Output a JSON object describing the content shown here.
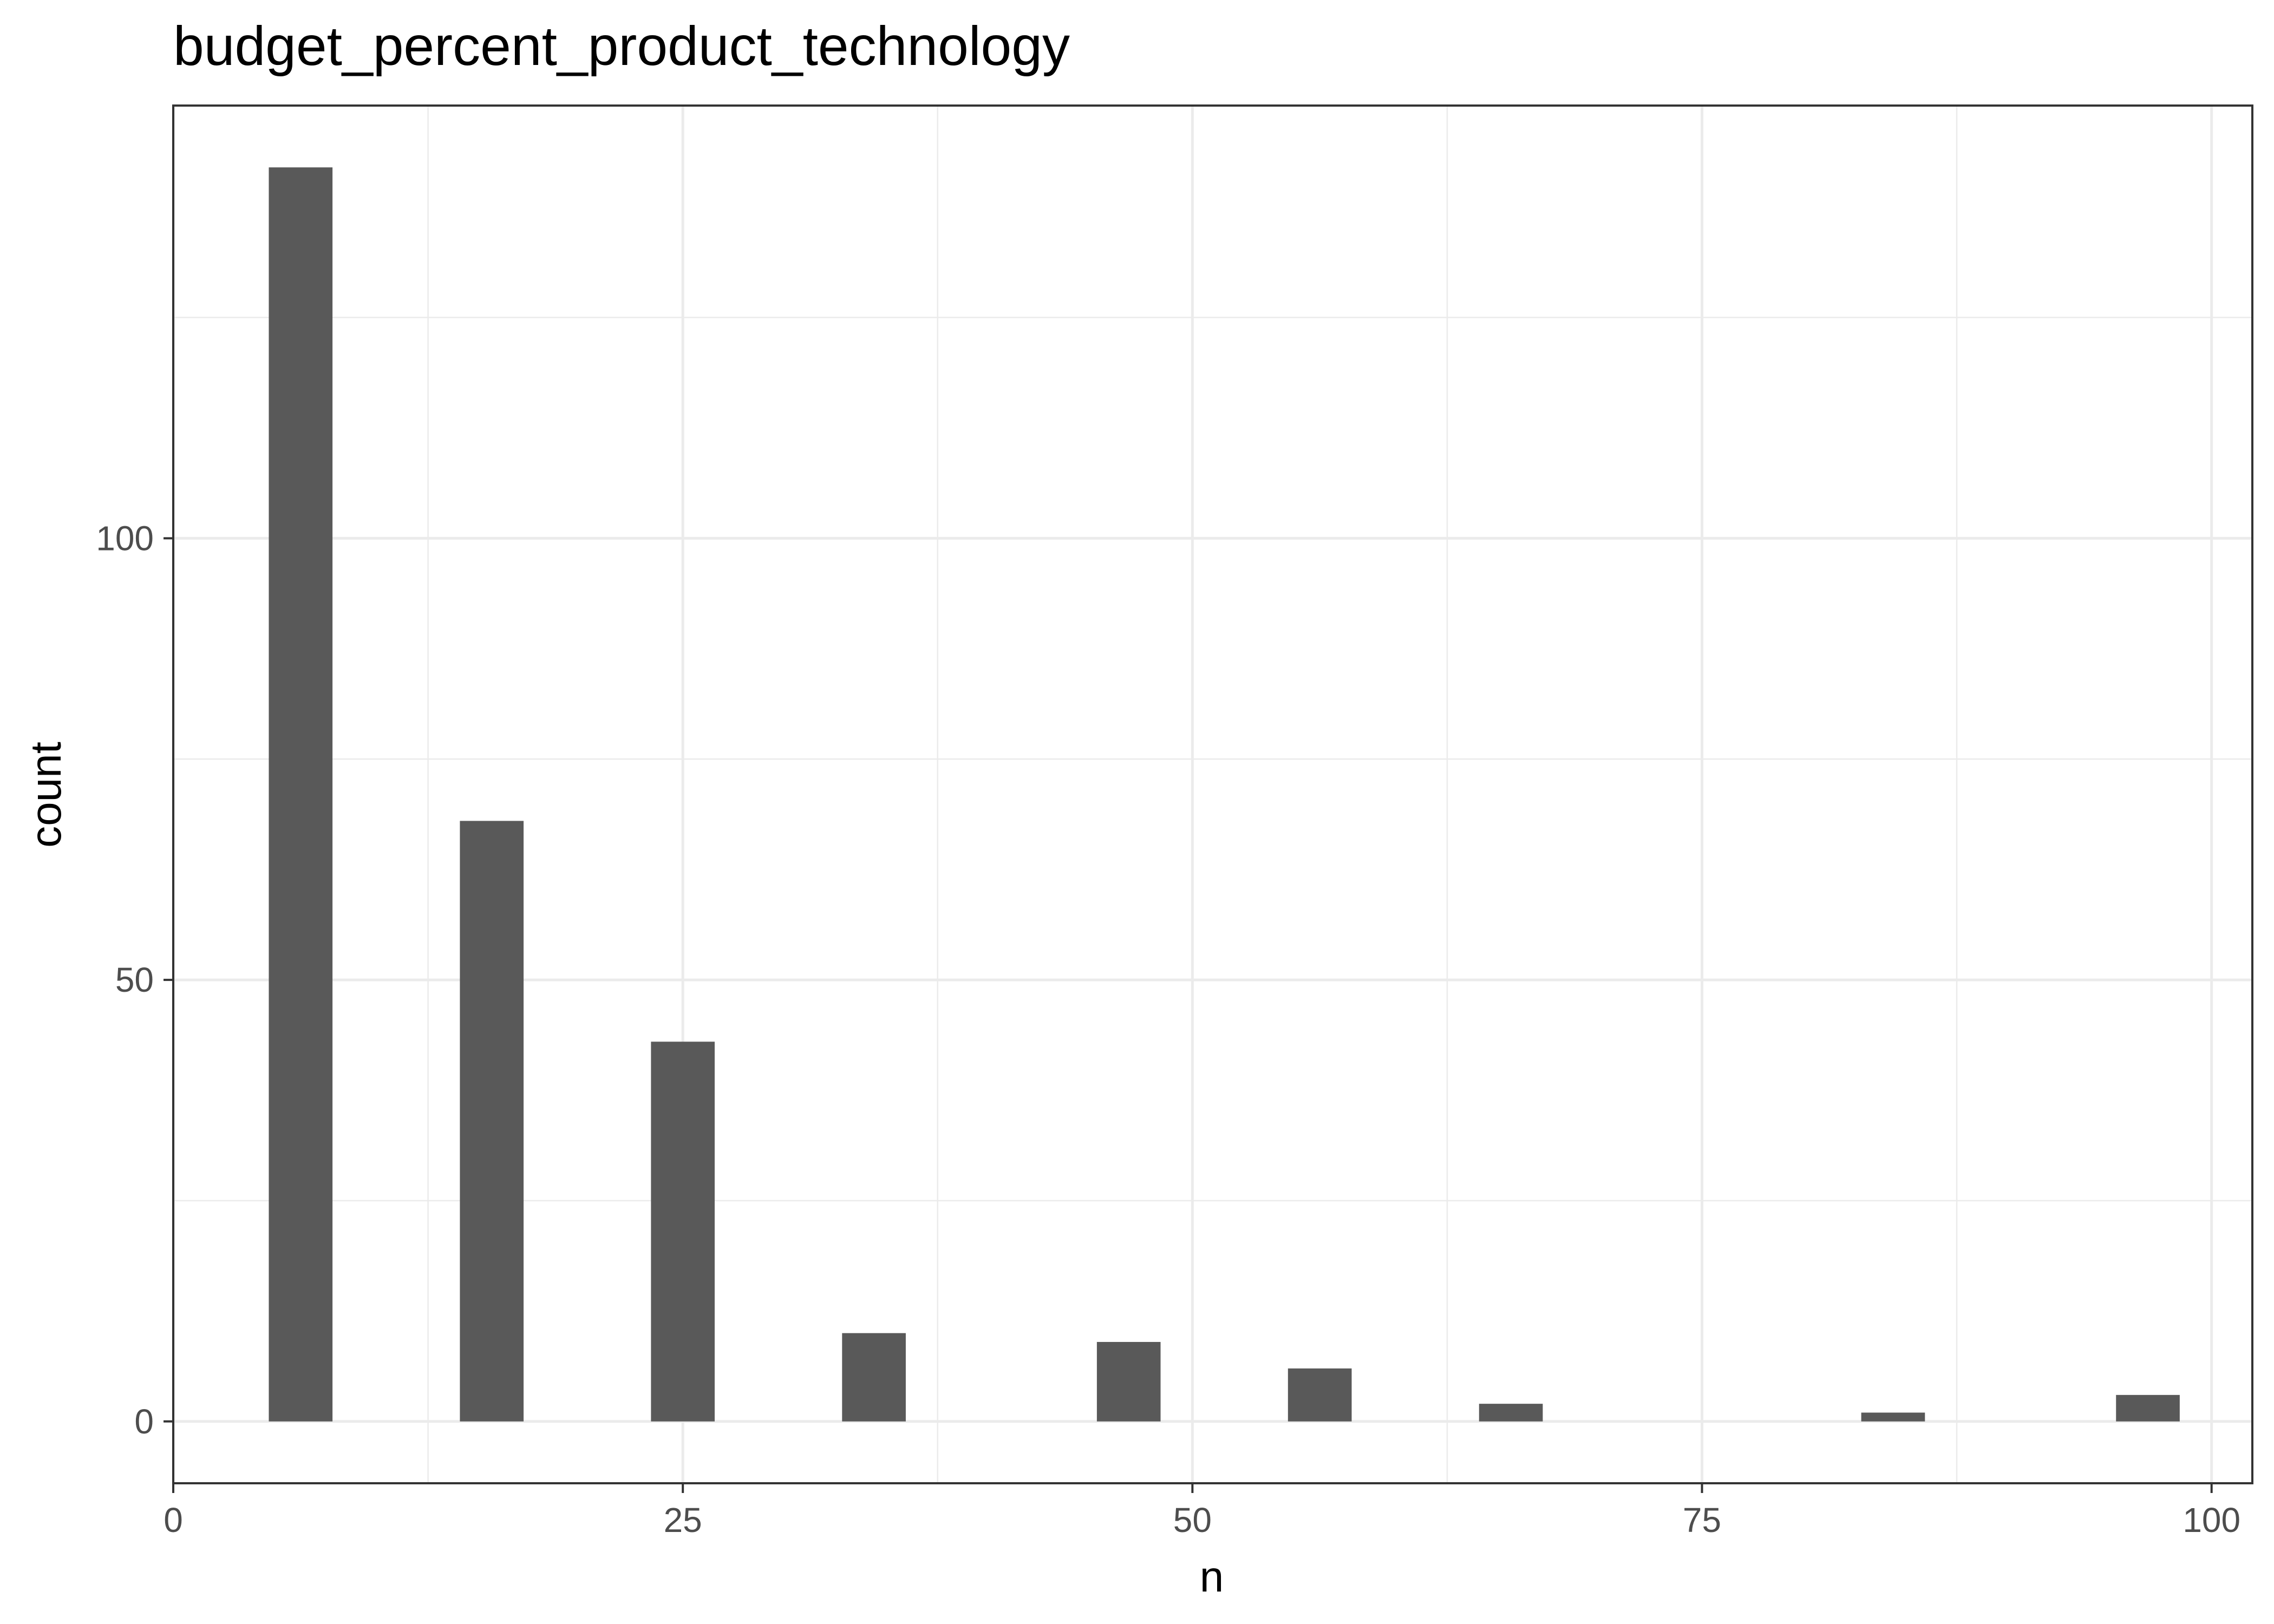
{
  "chart_data": {
    "type": "bar",
    "title": "budget_percent_product_technology",
    "xlabel": "n",
    "ylabel": "count",
    "xlim": [
      0,
      102
    ],
    "ylim": [
      -7,
      149
    ],
    "x_ticks": [
      0,
      25,
      50,
      75,
      100
    ],
    "y_ticks": [
      0,
      50,
      100
    ],
    "x_tick_labels": [
      "0",
      "25",
      "50",
      "75",
      "100"
    ],
    "y_tick_labels": [
      "0",
      "50",
      "100"
    ],
    "bin_width": 3.125,
    "bars": [
      {
        "x": 6.25,
        "count": 142
      },
      {
        "x": 15.625,
        "count": 68
      },
      {
        "x": 25.0,
        "count": 43
      },
      {
        "x": 34.375,
        "count": 10
      },
      {
        "x": 46.875,
        "count": 9
      },
      {
        "x": 56.25,
        "count": 6
      },
      {
        "x": 65.625,
        "count": 2
      },
      {
        "x": 84.375,
        "count": 1
      },
      {
        "x": 96.875,
        "count": 3
      }
    ],
    "grid": true,
    "bar_color": "#595959",
    "grid_color": "#ebebeb",
    "panel_border_color": "#333333"
  }
}
